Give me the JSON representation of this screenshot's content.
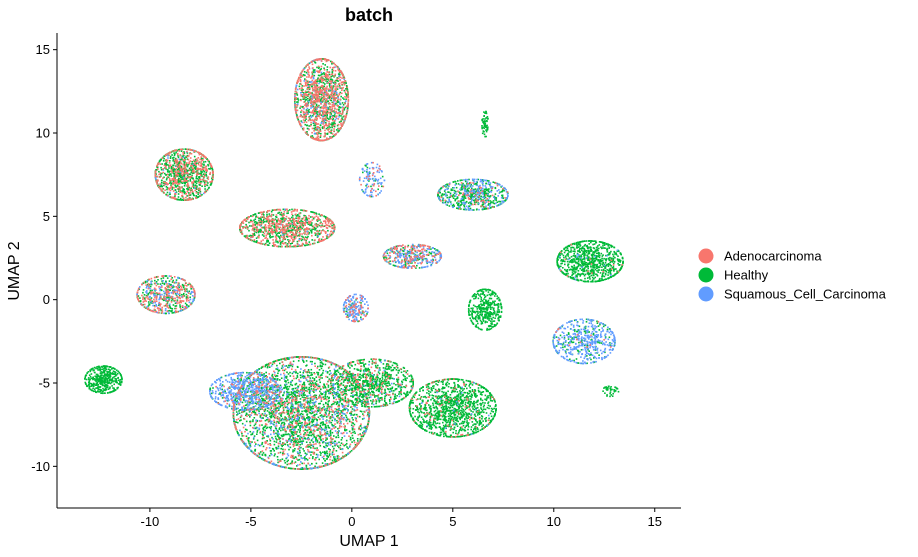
{
  "chart_data": {
    "type": "scatter",
    "title": "batch",
    "xlabel": "UMAP 1",
    "ylabel": "UMAP 2",
    "xlim": [
      -14.6,
      16.3
    ],
    "ylim": [
      -12.5,
      16.0
    ],
    "xticks": [
      -10,
      -5,
      0,
      5,
      10,
      15
    ],
    "yticks": [
      -10,
      -5,
      0,
      5,
      10,
      15
    ],
    "xtick_labels": [
      "-10",
      "-5",
      "0",
      "5",
      "10",
      "15"
    ],
    "ytick_labels": [
      "-10",
      "-5",
      "0",
      "5",
      "10",
      "15"
    ],
    "grid": false,
    "legend_position": "right",
    "series": [
      {
        "name": "Adenocarcinoma",
        "color": "#F8766D"
      },
      {
        "name": "Healthy",
        "color": "#00BA38"
      },
      {
        "name": "Squamous_Cell_Carcinoma",
        "color": "#619CFF"
      }
    ],
    "clusters": [
      {
        "cx": -1.5,
        "cy": 12.0,
        "rx": 1.3,
        "ry": 2.4,
        "n": 1500,
        "mix": [
          0.45,
          0.45,
          0.1
        ]
      },
      {
        "cx": -8.3,
        "cy": 7.5,
        "rx": 1.4,
        "ry": 1.5,
        "n": 1100,
        "mix": [
          0.35,
          0.62,
          0.03
        ]
      },
      {
        "cx": -3.2,
        "cy": 4.3,
        "rx": 2.3,
        "ry": 1.1,
        "n": 1100,
        "mix": [
          0.45,
          0.53,
          0.02
        ]
      },
      {
        "cx": 6.0,
        "cy": 6.3,
        "rx": 1.7,
        "ry": 0.9,
        "n": 650,
        "mix": [
          0.08,
          0.62,
          0.3
        ]
      },
      {
        "cx": 6.6,
        "cy": 10.5,
        "rx": 0.15,
        "ry": 0.8,
        "n": 60,
        "mix": [
          0.0,
          1.0,
          0.0
        ]
      },
      {
        "cx": 3.0,
        "cy": 2.6,
        "rx": 1.4,
        "ry": 0.7,
        "n": 450,
        "mix": [
          0.3,
          0.3,
          0.4
        ]
      },
      {
        "cx": 1.0,
        "cy": 7.2,
        "rx": 0.6,
        "ry": 1.0,
        "n": 120,
        "mix": [
          0.2,
          0.3,
          0.5
        ]
      },
      {
        "cx": 11.8,
        "cy": 2.3,
        "rx": 1.6,
        "ry": 1.2,
        "n": 850,
        "mix": [
          0.01,
          0.97,
          0.02
        ]
      },
      {
        "cx": 11.5,
        "cy": -2.5,
        "rx": 1.5,
        "ry": 1.3,
        "n": 550,
        "mix": [
          0.02,
          0.28,
          0.7
        ]
      },
      {
        "cx": 6.6,
        "cy": -0.6,
        "rx": 0.8,
        "ry": 1.2,
        "n": 380,
        "mix": [
          0.0,
          1.0,
          0.0
        ]
      },
      {
        "cx": -9.2,
        "cy": 0.3,
        "rx": 1.4,
        "ry": 1.1,
        "n": 600,
        "mix": [
          0.35,
          0.4,
          0.25
        ]
      },
      {
        "cx": -12.3,
        "cy": -4.8,
        "rx": 0.9,
        "ry": 0.8,
        "n": 420,
        "mix": [
          0.0,
          1.0,
          0.0
        ]
      },
      {
        "cx": 0.2,
        "cy": -0.5,
        "rx": 0.6,
        "ry": 0.8,
        "n": 200,
        "mix": [
          0.2,
          0.2,
          0.6
        ]
      },
      {
        "cx": -2.5,
        "cy": -6.8,
        "rx": 3.3,
        "ry": 3.3,
        "n": 3200,
        "mix": [
          0.2,
          0.66,
          0.14
        ]
      },
      {
        "cx": -5.3,
        "cy": -5.5,
        "rx": 1.7,
        "ry": 1.1,
        "n": 650,
        "mix": [
          0.04,
          0.18,
          0.78
        ]
      },
      {
        "cx": 5.0,
        "cy": -6.5,
        "rx": 2.1,
        "ry": 1.7,
        "n": 1300,
        "mix": [
          0.08,
          0.9,
          0.02
        ]
      },
      {
        "cx": 1.0,
        "cy": -5.0,
        "rx": 2.0,
        "ry": 1.4,
        "n": 900,
        "mix": [
          0.12,
          0.84,
          0.04
        ]
      },
      {
        "cx": 12.8,
        "cy": -5.5,
        "rx": 0.4,
        "ry": 0.3,
        "n": 40,
        "mix": [
          0.0,
          1.0,
          0.0
        ]
      }
    ]
  }
}
